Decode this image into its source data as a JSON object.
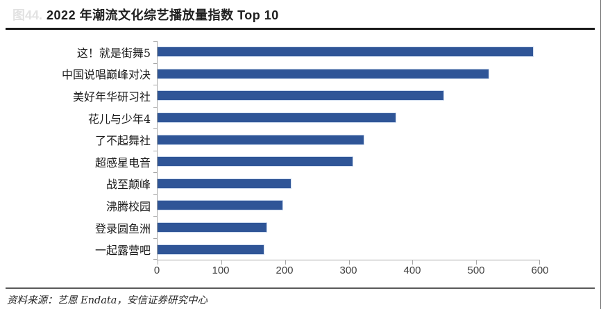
{
  "figure_label": "图44.",
  "header": {
    "title": "2022 年潮流文化综艺播放量指数 Top 10"
  },
  "footer": {
    "source": "资料来源：艺恩 Endata，安信证券研究中心"
  },
  "colors": {
    "bar": "#2F5597",
    "bar_border": "#CFDCEF",
    "axis_line": "#A6A6A6",
    "title_rule": "#1B1B1B",
    "footer_rule": "#595959",
    "tick_text": "#404040",
    "title_text": "#1F1F1F",
    "figure_label_text": "#E2E2E2"
  },
  "chart_data": {
    "type": "bar",
    "orientation": "horizontal",
    "title": "2022 年潮流文化综艺播放量指数 Top 10",
    "categories": [
      "这！就是街舞5",
      "中国说唱巅峰对决",
      "美好年华研习社",
      "花儿与少年4",
      "了不起舞社",
      "超感星电音",
      "战至颠峰",
      "沸腾校园",
      "登录圆鱼洲",
      "一起露营吧"
    ],
    "values": [
      590,
      520,
      450,
      375,
      325,
      307,
      210,
      197,
      172,
      168
    ],
    "xlabel": "",
    "ylabel": "",
    "xlim": [
      0,
      600
    ],
    "xticks": [
      0,
      100,
      200,
      300,
      400,
      500,
      600
    ],
    "grid": false,
    "legend": false
  }
}
